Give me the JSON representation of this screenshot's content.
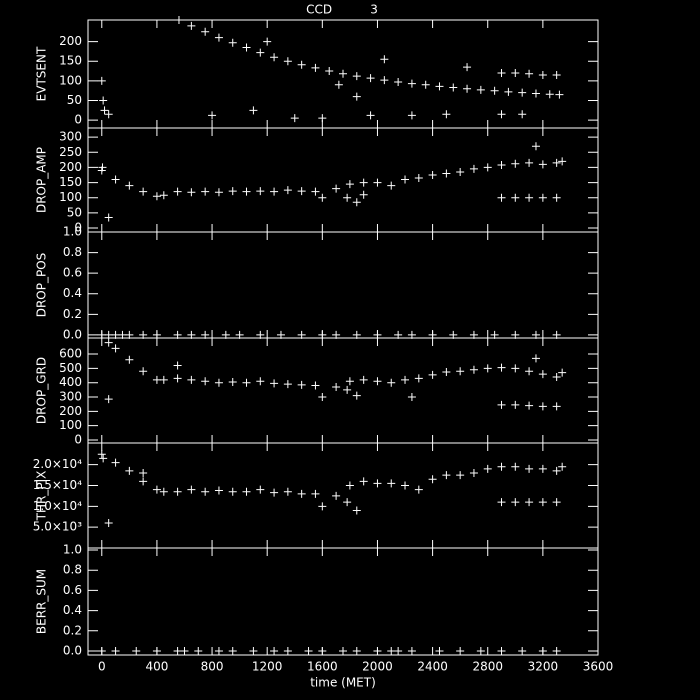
{
  "chart_data": [
    {
      "type": "scatter",
      "title": "CCD          3",
      "ylabel": "EVTSENT",
      "color": "#ffffff",
      "x": [
        0,
        10,
        20,
        50,
        560,
        650,
        750,
        850,
        950,
        1050,
        1150,
        1250,
        1350,
        1450,
        1550,
        1650,
        1750,
        1850,
        1950,
        2050,
        2150,
        2250,
        2350,
        2450,
        2550,
        2650,
        2750,
        2850,
        2950,
        3050,
        3150,
        3250,
        3320,
        800,
        1100,
        1400,
        1600,
        1950,
        2250,
        2500,
        2900,
        3050,
        1200,
        1720,
        1850,
        2050,
        2650,
        2900,
        3000,
        3100,
        3200,
        3300
      ],
      "values": [
        100,
        50,
        25,
        15,
        255,
        240,
        225,
        210,
        197,
        185,
        172,
        160,
        150,
        141,
        133,
        125,
        118,
        112,
        107,
        102,
        97,
        93,
        90,
        86,
        83,
        80,
        77,
        75,
        72,
        70,
        68,
        66,
        65,
        12,
        25,
        5,
        5,
        12,
        12,
        15,
        15,
        15,
        200,
        90,
        60,
        155,
        135,
        120,
        120,
        118,
        115,
        115
      ],
      "ylim": [
        -20,
        255
      ],
      "yticks": [
        0,
        50,
        100,
        150,
        200
      ]
    },
    {
      "type": "scatter",
      "ylabel": "DROP_AMP",
      "color": "#ffffff",
      "x": [
        0,
        5,
        50,
        100,
        200,
        300,
        400,
        450,
        550,
        650,
        750,
        850,
        950,
        1050,
        1150,
        1250,
        1350,
        1450,
        1550,
        1600,
        1700,
        1800,
        1900,
        2000,
        2100,
        2200,
        2300,
        2400,
        2500,
        2600,
        2700,
        2800,
        2900,
        3000,
        3100,
        3200,
        3300,
        3340,
        1780,
        1850,
        1900,
        2900,
        3000,
        3100,
        3200,
        3300,
        3150
      ],
      "values": [
        190,
        200,
        35,
        160,
        140,
        120,
        105,
        108,
        120,
        118,
        120,
        118,
        122,
        120,
        122,
        120,
        125,
        122,
        120,
        100,
        130,
        145,
        150,
        150,
        140,
        160,
        165,
        175,
        180,
        185,
        195,
        200,
        208,
        212,
        215,
        210,
        215,
        220,
        100,
        85,
        110,
        100,
        100,
        100,
        100,
        100,
        270
      ],
      "ylim": [
        -13,
        330
      ],
      "yticks": [
        0,
        50,
        100,
        150,
        200,
        250,
        300
      ]
    },
    {
      "type": "scatter",
      "ylabel": "DROP_POS",
      "color": "#ffffff",
      "x": [
        0,
        50,
        100,
        150,
        200,
        300,
        400,
        550,
        650,
        750,
        900,
        1000,
        1150,
        1300,
        1450,
        1600,
        1700,
        1850,
        2000,
        2150,
        2250,
        2400,
        2550,
        2700,
        2850,
        3000,
        3150,
        3300
      ],
      "values": [
        0,
        0,
        0,
        0,
        0,
        0,
        0,
        0,
        0,
        0,
        0,
        0,
        0,
        0,
        0,
        0,
        0,
        0,
        0,
        0,
        0,
        0,
        0,
        0,
        0,
        0,
        0,
        0
      ],
      "ylim": [
        -0.03,
        1.0
      ],
      "yticks": [
        {
          "value": 0,
          "label": "0.0"
        },
        0.2,
        0.4,
        0.6,
        0.8,
        {
          "value": 1,
          "label": "1.0"
        }
      ]
    },
    {
      "type": "scatter",
      "ylabel": "DROP_GRD",
      "color": "#ffffff",
      "x": [
        50,
        100,
        200,
        300,
        400,
        450,
        550,
        650,
        750,
        850,
        950,
        1050,
        1150,
        1250,
        1350,
        1450,
        1550,
        1600,
        1700,
        1800,
        1900,
        2000,
        2100,
        2200,
        2300,
        2400,
        2500,
        2600,
        2700,
        2800,
        2900,
        3000,
        3100,
        3200,
        3300,
        3340,
        50,
        1780,
        1850,
        2250,
        2900,
        3000,
        3100,
        3200,
        3300,
        3150,
        550
      ],
      "values": [
        680,
        640,
        560,
        480,
        420,
        420,
        430,
        420,
        410,
        400,
        405,
        400,
        410,
        395,
        390,
        385,
        380,
        300,
        370,
        410,
        420,
        410,
        400,
        420,
        430,
        455,
        475,
        480,
        490,
        500,
        505,
        500,
        480,
        460,
        440,
        470,
        285,
        350,
        310,
        300,
        245,
        245,
        240,
        235,
        235,
        570,
        520
      ],
      "ylim": [
        -21,
        712
      ],
      "yticks": [
        0,
        100,
        200,
        300,
        400,
        500,
        600
      ]
    },
    {
      "type": "scatter",
      "ylabel": "THR_PIX",
      "color": "#ffffff",
      "x": [
        0,
        10,
        50,
        100,
        200,
        300,
        400,
        450,
        550,
        650,
        750,
        850,
        950,
        1050,
        1150,
        1250,
        1350,
        1450,
        1550,
        1600,
        1700,
        1800,
        1900,
        2000,
        2100,
        2200,
        2300,
        2400,
        2500,
        2600,
        2700,
        2800,
        2900,
        3000,
        3100,
        3200,
        3300,
        3340,
        1780,
        1850,
        2900,
        3000,
        3100,
        3200,
        3300,
        300
      ],
      "values": [
        22500,
        21500,
        6000,
        20500,
        18500,
        16000,
        14000,
        13500,
        13500,
        14000,
        13500,
        13800,
        13500,
        13500,
        14000,
        13300,
        13500,
        13000,
        13000,
        10000,
        12500,
        15000,
        16000,
        15500,
        15500,
        15000,
        14000,
        16500,
        17500,
        17500,
        18000,
        19000,
        19500,
        19500,
        19000,
        19000,
        18500,
        19500,
        11000,
        9000,
        11000,
        11000,
        11000,
        11000,
        11000,
        18000
      ],
      "ylim": [
        0,
        25200
      ],
      "yticks": [
        {
          "value": 5000,
          "label": "5.0×10³"
        },
        {
          "value": 10000,
          "label": "1.0×10⁴"
        },
        {
          "value": 15000,
          "label": "1.5×10⁴"
        },
        {
          "value": 20000,
          "label": "2.0×10⁴"
        }
      ]
    },
    {
      "type": "scatter",
      "ylabel": "BERR_SUM",
      "color": "#ffffff",
      "x": [
        0,
        100,
        250,
        400,
        550,
        600,
        700,
        850,
        950,
        1100,
        1250,
        1350,
        1500,
        1600,
        1750,
        1850,
        2000,
        2100,
        2150,
        2250,
        2450,
        2600,
        2750,
        2900,
        3050,
        3200,
        3300
      ],
      "values": [
        0,
        0,
        0,
        0,
        0,
        0,
        0,
        0,
        0,
        0,
        0,
        0,
        0,
        0,
        0,
        0,
        0,
        0,
        0,
        0,
        0,
        0,
        0,
        0,
        0,
        0,
        0
      ],
      "ylim": [
        -0.04,
        1.02
      ],
      "yticks": [
        {
          "value": 0,
          "label": "0.0"
        },
        0.2,
        0.4,
        0.6,
        0.8,
        {
          "value": 1,
          "label": "1.0"
        }
      ],
      "xlabel": "time (MET)",
      "xlim": [
        -100,
        3600
      ],
      "xticks": [
        0,
        400,
        800,
        1200,
        1600,
        2000,
        2400,
        2800,
        3200,
        3600
      ]
    }
  ]
}
